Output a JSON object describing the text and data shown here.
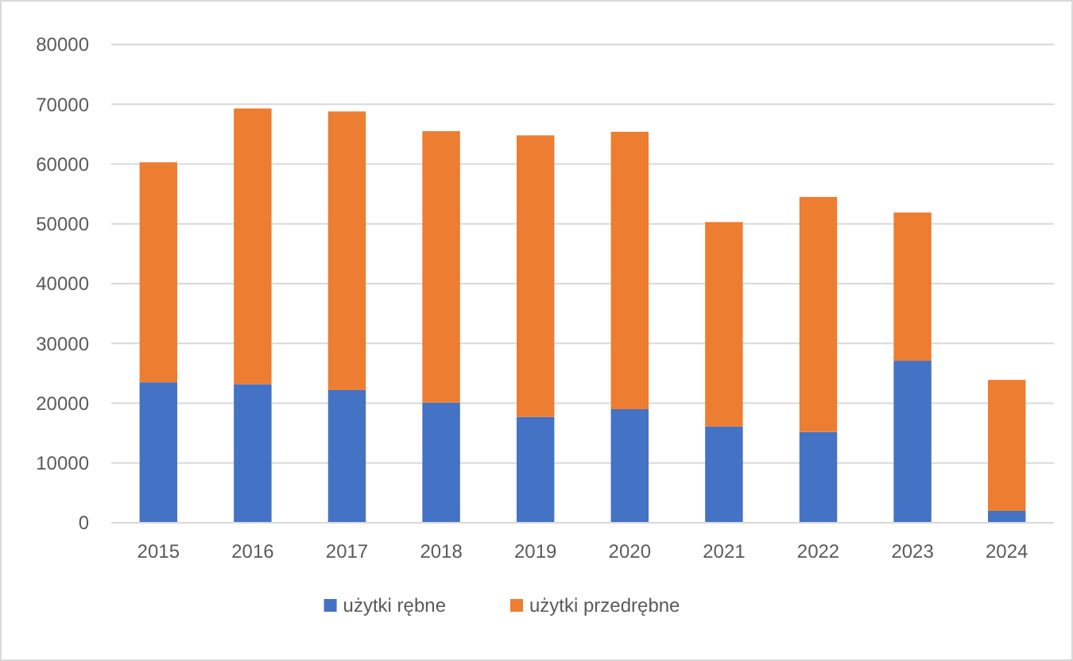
{
  "chart_data": {
    "type": "bar",
    "stacked": true,
    "categories": [
      "2015",
      "2016",
      "2017",
      "2018",
      "2019",
      "2020",
      "2021",
      "2022",
      "2023",
      "2024"
    ],
    "series": [
      {
        "name": "użytki rębne",
        "color": "#4472c4",
        "values": [
          23500,
          23200,
          22200,
          20100,
          17700,
          19000,
          16100,
          15200,
          27100,
          2000
        ]
      },
      {
        "name": "użytki przedrębne",
        "color": "#ed7d31",
        "values": [
          36800,
          46100,
          46600,
          45400,
          47100,
          46400,
          34200,
          39300,
          24800,
          21900
        ]
      }
    ],
    "ylim": [
      0,
      80000
    ],
    "yticks": [
      0,
      10000,
      20000,
      30000,
      40000,
      50000,
      60000,
      70000,
      80000
    ],
    "grid": "y",
    "legend": "bottom"
  }
}
